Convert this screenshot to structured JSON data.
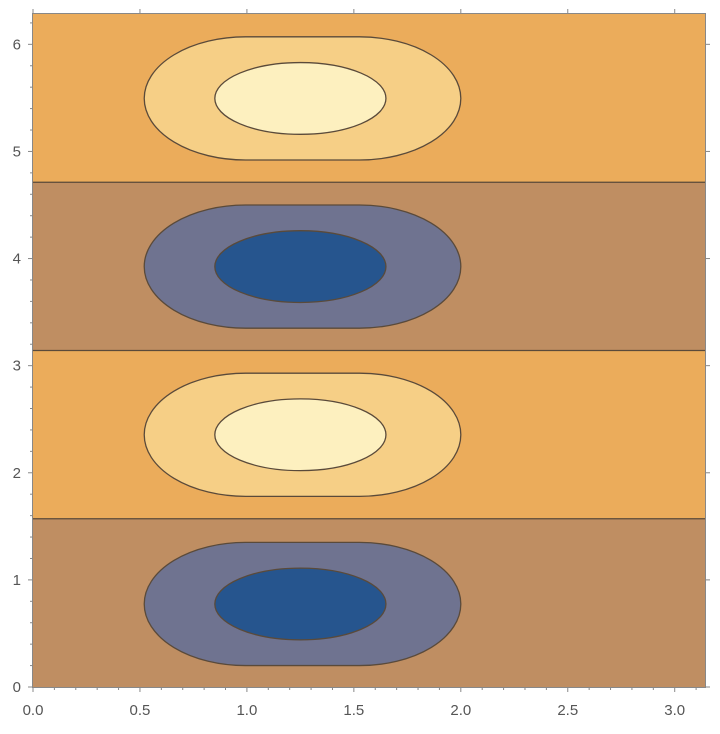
{
  "chart_data": {
    "type": "contour",
    "title": "",
    "xlabel": "",
    "ylabel": "",
    "xlim": [
      0,
      3.14159
    ],
    "ylim": [
      0,
      6.28319
    ],
    "x_ticks": [
      {
        "value": 0.0,
        "label": "0.0"
      },
      {
        "value": 0.5,
        "label": "0.5"
      },
      {
        "value": 1.0,
        "label": "1.0"
      },
      {
        "value": 1.5,
        "label": "1.5"
      },
      {
        "value": 2.0,
        "label": "2.0"
      },
      {
        "value": 2.5,
        "label": "2.5"
      },
      {
        "value": 3.0,
        "label": "3.0"
      }
    ],
    "y_ticks": [
      {
        "value": 0,
        "label": "0"
      },
      {
        "value": 1,
        "label": "1"
      },
      {
        "value": 2,
        "label": "2"
      },
      {
        "value": 3,
        "label": "3"
      },
      {
        "value": 4,
        "label": "4"
      },
      {
        "value": 5,
        "label": "5"
      },
      {
        "value": 6,
        "label": "6"
      }
    ],
    "bands": [
      {
        "y0": 0.0,
        "y1": 1.5708,
        "sign": "negative",
        "color": "#bf8e62"
      },
      {
        "y0": 1.5708,
        "y1": 3.1416,
        "sign": "positive",
        "color": "#ebac5b"
      },
      {
        "y0": 3.1416,
        "y1": 4.7124,
        "sign": "negative",
        "color": "#bf8e62"
      },
      {
        "y0": 4.7124,
        "y1": 6.2832,
        "sign": "positive",
        "color": "#ebac5b"
      }
    ],
    "band_boundaries": [
      1.5708,
      3.1416,
      4.7124
    ],
    "extrema": [
      {
        "x": 1.25,
        "y": 0.785,
        "sign": "negative",
        "levels": [
          {
            "x0": 0.52,
            "x1": 2.0,
            "y0": 0.2,
            "y1": 1.35,
            "color": "#6f7390"
          },
          {
            "x0": 0.85,
            "x1": 1.65,
            "y0": 0.44,
            "y1": 1.11,
            "color": "#26558e"
          }
        ]
      },
      {
        "x": 1.25,
        "y": 2.356,
        "sign": "positive",
        "levels": [
          {
            "x0": 0.52,
            "x1": 2.0,
            "y0": 1.78,
            "y1": 2.93,
            "color": "#f6cf86"
          },
          {
            "x0": 0.85,
            "x1": 1.65,
            "y0": 2.02,
            "y1": 2.69,
            "color": "#fdf0bf"
          }
        ]
      },
      {
        "x": 1.25,
        "y": 3.927,
        "sign": "negative",
        "levels": [
          {
            "x0": 0.52,
            "x1": 2.0,
            "y0": 3.35,
            "y1": 4.5,
            "color": "#6f7390"
          },
          {
            "x0": 0.85,
            "x1": 1.65,
            "y0": 3.59,
            "y1": 4.26,
            "color": "#26558e"
          }
        ]
      },
      {
        "x": 1.25,
        "y": 5.498,
        "sign": "positive",
        "levels": [
          {
            "x0": 0.52,
            "x1": 2.0,
            "y0": 4.92,
            "y1": 6.07,
            "color": "#f6cf86"
          },
          {
            "x0": 0.85,
            "x1": 1.65,
            "y0": 5.16,
            "y1": 5.83,
            "color": "#fdf0bf"
          }
        ]
      }
    ],
    "contour_line_color": "#5a4a3a",
    "grid": false,
    "legend": "none"
  }
}
